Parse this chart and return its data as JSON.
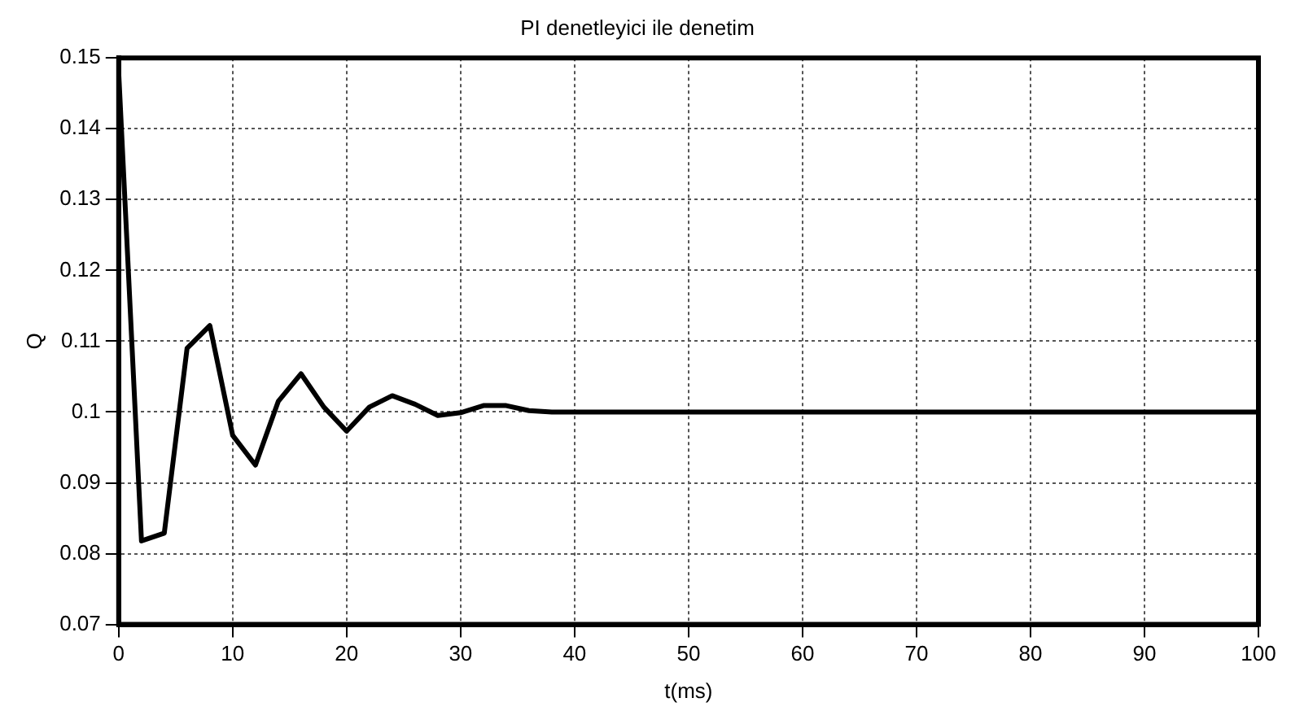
{
  "chart_data": {
    "type": "line",
    "title": "PI denetleyici ile denetim",
    "xlabel": "t(ms)",
    "ylabel": "Q",
    "x": [
      0,
      2,
      4,
      6,
      8,
      10,
      12,
      14,
      16,
      18,
      20,
      22,
      24,
      26,
      28,
      30,
      32,
      34,
      36,
      38,
      40,
      50,
      60,
      70,
      80,
      90,
      100
    ],
    "series": [
      {
        "color": "#000000",
        "values": [
          0.148,
          0.0818,
          0.0829,
          0.109,
          0.1122,
          0.0967,
          0.0925,
          0.1015,
          0.1054,
          0.1007,
          0.0973,
          0.1007,
          0.1023,
          0.1011,
          0.0995,
          0.0999,
          0.1009,
          0.1009,
          0.1002,
          0.1,
          0.1,
          0.1,
          0.1,
          0.1,
          0.1,
          0.1,
          0.1
        ]
      }
    ],
    "xlim": [
      0,
      100
    ],
    "xticks": [
      0,
      10,
      20,
      30,
      40,
      50,
      60,
      70,
      80,
      90,
      100
    ],
    "ylim": [
      0.07,
      0.15
    ],
    "yticks": [
      0.07,
      0.08,
      0.09,
      0.1,
      0.11,
      0.12,
      0.13,
      0.14,
      0.15
    ],
    "grid": true,
    "legend": false,
    "marker": "none",
    "line_style": "solid"
  }
}
